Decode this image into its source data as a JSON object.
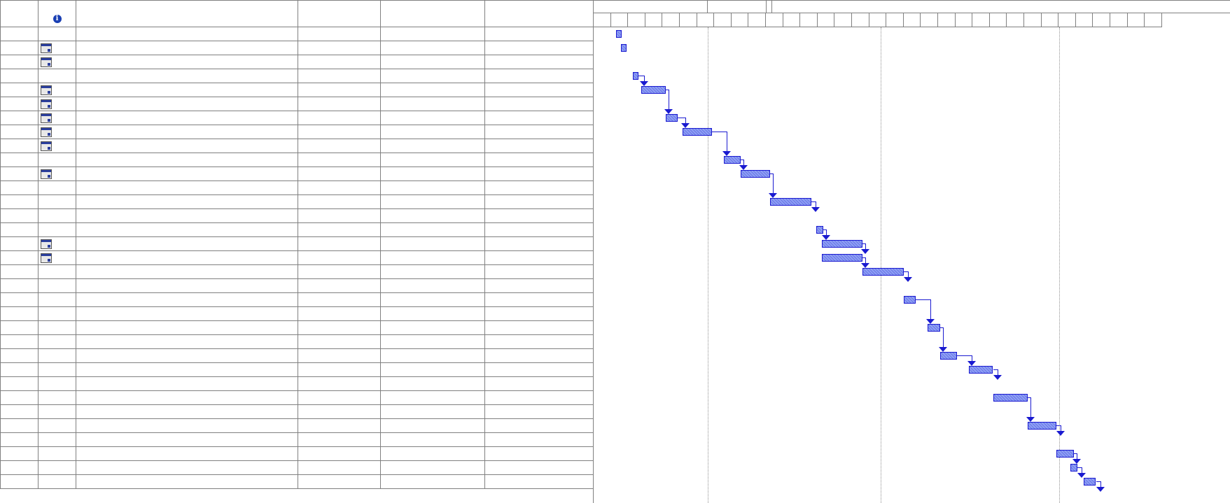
{
  "table": {
    "columns": [
      {
        "key": "id",
        "label": ""
      },
      {
        "key": "indicators",
        "label": "info-icon"
      },
      {
        "key": "name",
        "label": ""
      },
      {
        "key": "duration",
        "label": ""
      },
      {
        "key": "start",
        "label": ""
      },
      {
        "key": "finish",
        "label": ""
      }
    ],
    "rows": [
      {
        "indicator": ""
      },
      {
        "indicator": "calendar-icon"
      },
      {
        "indicator": "calendar-icon"
      },
      {
        "indicator": ""
      },
      {
        "indicator": "calendar-icon"
      },
      {
        "indicator": "calendar-icon"
      },
      {
        "indicator": "calendar-icon"
      },
      {
        "indicator": "calendar-icon"
      },
      {
        "indicator": "calendar-icon"
      },
      {
        "indicator": ""
      },
      {
        "indicator": "calendar-icon"
      },
      {
        "indicator": ""
      },
      {
        "indicator": ""
      },
      {
        "indicator": ""
      },
      {
        "indicator": ""
      },
      {
        "indicator": "calendar-icon"
      },
      {
        "indicator": "calendar-icon"
      },
      {
        "indicator": ""
      },
      {
        "indicator": ""
      },
      {
        "indicator": ""
      },
      {
        "indicator": ""
      },
      {
        "indicator": ""
      },
      {
        "indicator": ""
      },
      {
        "indicator": ""
      },
      {
        "indicator": ""
      },
      {
        "indicator": ""
      },
      {
        "indicator": ""
      },
      {
        "indicator": ""
      },
      {
        "indicator": ""
      },
      {
        "indicator": ""
      },
      {
        "indicator": ""
      },
      {
        "indicator": ""
      },
      {
        "indicator": ""
      }
    ]
  },
  "gantt": {
    "timescale_major": [
      "",
      "",
      "",
      ""
    ],
    "timescale_minor_count": 33,
    "bar_color": "#8ea0f5",
    "link_color": "#1a1ad0",
    "tasks": [
      {
        "row": 1,
        "start": 1,
        "dur": 0.3
      },
      {
        "row": 2,
        "start": 1.3,
        "dur": 0.3
      },
      {
        "row": 4,
        "start": 2,
        "dur": 0.3
      },
      {
        "row": 5,
        "start": 2.5,
        "dur": 1.4
      },
      {
        "row": 7,
        "start": 3.9,
        "dur": 0.7
      },
      {
        "row": 8,
        "start": 4.9,
        "dur": 1.7
      },
      {
        "row": 10,
        "start": 7.3,
        "dur": 1
      },
      {
        "row": 11,
        "start": 8.3,
        "dur": 1.7
      },
      {
        "row": 13,
        "start": 10,
        "dur": 2.4
      },
      {
        "row": 15,
        "start": 12.7,
        "dur": 0.4
      },
      {
        "row": 16,
        "start": 13,
        "dur": 2.4
      },
      {
        "row": 17,
        "start": 13,
        "dur": 2.4
      },
      {
        "row": 18,
        "start": 15.4,
        "dur": 2.4
      },
      {
        "row": 20,
        "start": 17.8,
        "dur": 0.7
      },
      {
        "row": 22,
        "start": 19.2,
        "dur": 0.7
      },
      {
        "row": 24,
        "start": 19.9,
        "dur": 1
      },
      {
        "row": 25,
        "start": 21.6,
        "dur": 1.4
      },
      {
        "row": 27,
        "start": 23,
        "dur": 2
      },
      {
        "row": 29,
        "start": 25,
        "dur": 1.7
      },
      {
        "row": 31,
        "start": 26.7,
        "dur": 1
      },
      {
        "row": 32,
        "start": 27.5,
        "dur": 0.4
      },
      {
        "row": 33,
        "start": 28.3,
        "dur": 0.7
      }
    ],
    "links": [
      {
        "from": 2,
        "to": 3
      },
      {
        "from": 3,
        "to": 4
      },
      {
        "from": 4,
        "to": 5
      },
      {
        "from": 5,
        "to": 6
      },
      {
        "from": 6,
        "to": 7
      },
      {
        "from": 7,
        "to": 8
      },
      {
        "from": 8,
        "to": "arrow"
      },
      {
        "from": 9,
        "to": 10
      },
      {
        "from": 10,
        "to": 11
      },
      {
        "from": 11,
        "to": 12
      },
      {
        "from": 12,
        "to": "arrow"
      },
      {
        "from": 13,
        "to": 14
      },
      {
        "from": 14,
        "to": 15
      },
      {
        "from": 15,
        "to": 16
      },
      {
        "from": 16,
        "to": "arrow"
      },
      {
        "from": 17,
        "to": 18
      },
      {
        "from": 18,
        "to": "arrow"
      },
      {
        "from": 19,
        "to": 20
      },
      {
        "from": 20,
        "to": "arrow"
      },
      {
        "from": 21,
        "to": "arrow"
      }
    ]
  }
}
